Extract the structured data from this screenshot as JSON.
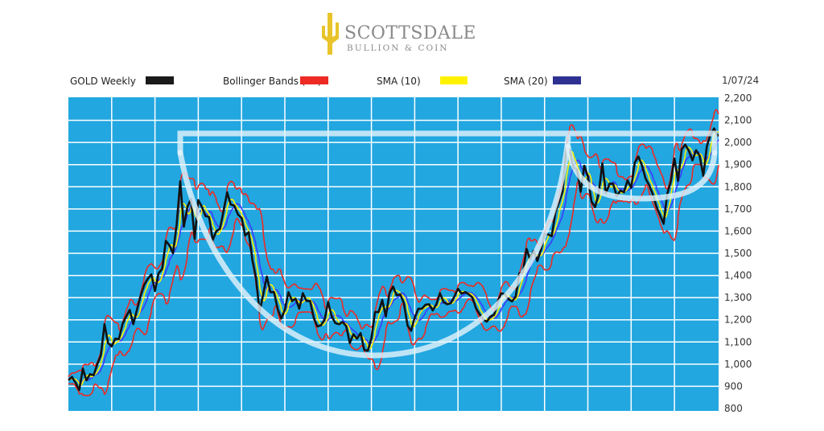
{
  "logo": {
    "name": "SCOTTSDALE",
    "tagline": "BULLION & COIN",
    "color": "#e8c42a"
  },
  "legend": [
    {
      "label": "GOLD Weekly",
      "color": "#1a1a1a"
    },
    {
      "label": "Bollinger Bands (20)",
      "color": "#ee2a24"
    },
    {
      "label": "SMA (10)",
      "color": "#fff200"
    },
    {
      "label": "SMA (20)",
      "color": "#2e3192"
    }
  ],
  "date_label": "1/07/24",
  "colors": {
    "plot_bg": "#22a7e0",
    "grid": "#ffffff",
    "price": "#111111",
    "bollinger": "#ee2a24",
    "sma10": "#fff200",
    "sma20": "#3b3bff",
    "pattern": "#e6f4fb"
  },
  "chart_data": {
    "type": "line",
    "title": "",
    "x_range": [
      "2009-01",
      "2024-01-07"
    ],
    "ylim": [
      800,
      2200
    ],
    "y_ticks": [
      "2,200",
      "2,100",
      "2,000",
      "1,900",
      "1,800",
      "1,700",
      "1,600",
      "1,500",
      "1,400",
      "1,300",
      "1,200",
      "1,100",
      "1,000",
      "900",
      "800"
    ],
    "grid": true,
    "annotation": "cup and handle pattern",
    "start_month": "2009-01",
    "monthly_close": [
      928,
      942,
      916,
      883,
      980,
      927,
      955,
      950,
      1000,
      1040,
      1180,
      1095,
      1080,
      1115,
      1113,
      1180,
      1215,
      1245,
      1180,
      1245,
      1307,
      1357,
      1385,
      1405,
      1330,
      1410,
      1430,
      1556,
      1536,
      1500,
      1628,
      1825,
      1620,
      1710,
      1745,
      1565,
      1740,
      1710,
      1668,
      1664,
      1560,
      1600,
      1610,
      1690,
      1775,
      1720,
      1715,
      1675,
      1660,
      1580,
      1595,
      1470,
      1390,
      1235,
      1315,
      1395,
      1325,
      1325,
      1250,
      1205,
      1245,
      1325,
      1285,
      1295,
      1250,
      1320,
      1285,
      1285,
      1210,
      1170,
      1175,
      1200,
      1280,
      1215,
      1185,
      1180,
      1190,
      1172,
      1095,
      1135,
      1115,
      1140,
      1065,
      1060,
      1118,
      1235,
      1235,
      1290,
      1215,
      1320,
      1350,
      1310,
      1315,
      1275,
      1175,
      1150,
      1210,
      1250,
      1250,
      1268,
      1270,
      1242,
      1270,
      1320,
      1280,
      1270,
      1275,
      1305,
      1340,
      1318,
      1325,
      1315,
      1300,
      1252,
      1225,
      1200,
      1192,
      1215,
      1222,
      1280,
      1320,
      1315,
      1292,
      1283,
      1305,
      1410,
      1413,
      1520,
      1472,
      1512,
      1465,
      1517,
      1587,
      1585,
      1577,
      1686,
      1730,
      1780,
      1975,
      1967,
      1886,
      1879,
      1777,
      1895,
      1847,
      1734,
      1708,
      1769,
      1905,
      1770,
      1814,
      1814,
      1757,
      1783,
      1775,
      1829,
      1796,
      1909,
      1937,
      1896,
      1837,
      1807,
      1766,
      1711,
      1672,
      1633,
      1768,
      1824,
      1928,
      1826,
      1969,
      1990,
      1962,
      1919,
      1965,
      1940,
      1849,
      1984,
      2036,
      2063,
      2030
    ],
    "series": [
      {
        "name": "GOLD Weekly"
      },
      {
        "name": "Bollinger Bands (20)"
      },
      {
        "name": "SMA (10)"
      },
      {
        "name": "SMA (20)"
      }
    ]
  }
}
